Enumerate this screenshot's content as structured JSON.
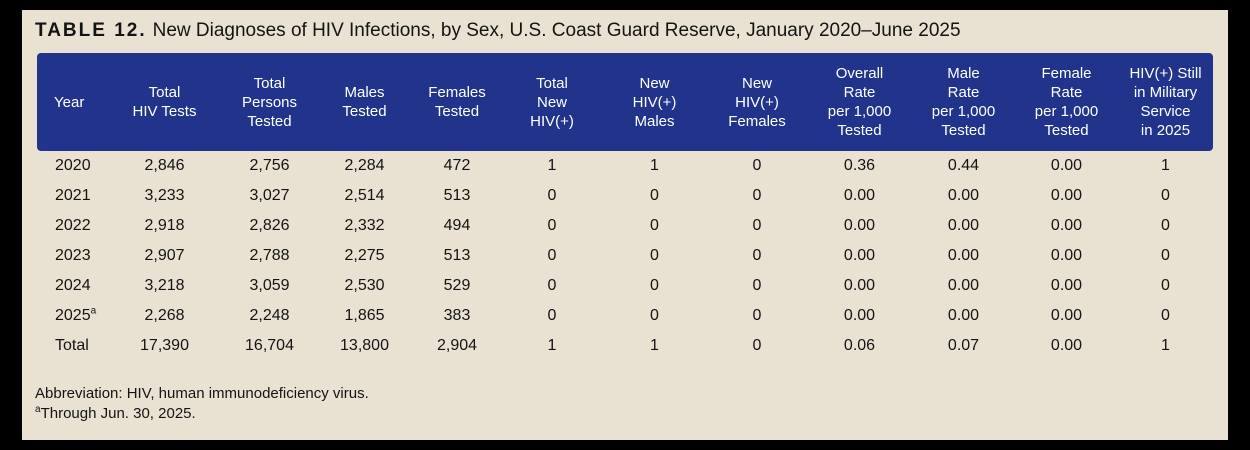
{
  "title": {
    "label": "TABLE 12.",
    "text": "New Diagnoses of HIV Infections, by Sex, U.S. Coast Guard Reserve, January 2020–June 2025"
  },
  "colors": {
    "header_bg": "#21338b",
    "header_text": "#ffffff",
    "page_bg": "#e9e1d2",
    "frame": "#000000",
    "body_text": "#141414"
  },
  "table": {
    "columns": [
      {
        "key": "year",
        "label": "Year"
      },
      {
        "key": "total_hiv_tests",
        "label": "Total\nHIV Tests"
      },
      {
        "key": "total_persons_tested",
        "label": "Total\nPersons\nTested"
      },
      {
        "key": "males_tested",
        "label": "Males\nTested"
      },
      {
        "key": "females_tested",
        "label": "Females\nTested"
      },
      {
        "key": "total_new_hiv_pos",
        "label": "Total\nNew\nHIV(+)"
      },
      {
        "key": "new_hiv_pos_males",
        "label": "New\nHIV(+)\nMales"
      },
      {
        "key": "new_hiv_pos_females",
        "label": "New\nHIV(+)\nFemales"
      },
      {
        "key": "overall_rate",
        "label": "Overall\nRate\nper 1,000\nTested"
      },
      {
        "key": "male_rate",
        "label": "Male\nRate\nper 1,000\nTested"
      },
      {
        "key": "female_rate",
        "label": "Female\nRate\nper 1,000\nTested"
      },
      {
        "key": "hiv_pos_still_in_service",
        "label": "HIV(+) Still\nin Military\nService\nin 2025"
      }
    ],
    "rows": [
      {
        "year": "2020",
        "year_sup": "",
        "values": [
          "2,846",
          "2,756",
          "2,284",
          "472",
          "1",
          "1",
          "0",
          "0.36",
          "0.44",
          "0.00",
          "1"
        ]
      },
      {
        "year": "2021",
        "year_sup": "",
        "values": [
          "3,233",
          "3,027",
          "2,514",
          "513",
          "0",
          "0",
          "0",
          "0.00",
          "0.00",
          "0.00",
          "0"
        ]
      },
      {
        "year": "2022",
        "year_sup": "",
        "values": [
          "2,918",
          "2,826",
          "2,332",
          "494",
          "0",
          "0",
          "0",
          "0.00",
          "0.00",
          "0.00",
          "0"
        ]
      },
      {
        "year": "2023",
        "year_sup": "",
        "values": [
          "2,907",
          "2,788",
          "2,275",
          "513",
          "0",
          "0",
          "0",
          "0.00",
          "0.00",
          "0.00",
          "0"
        ]
      },
      {
        "year": "2024",
        "year_sup": "",
        "values": [
          "3,218",
          "3,059",
          "2,530",
          "529",
          "0",
          "0",
          "0",
          "0.00",
          "0.00",
          "0.00",
          "0"
        ]
      },
      {
        "year": "2025",
        "year_sup": "a",
        "values": [
          "2,268",
          "2,248",
          "1,865",
          "383",
          "0",
          "0",
          "0",
          "0.00",
          "0.00",
          "0.00",
          "0"
        ]
      },
      {
        "year": "Total",
        "year_sup": "",
        "values": [
          "17,390",
          "16,704",
          "13,800",
          "2,904",
          "1",
          "1",
          "0",
          "0.06",
          "0.07",
          "0.00",
          "1"
        ]
      }
    ]
  },
  "footnotes": {
    "abbreviation": "Abbreviation: HIV, human immunodeficiency virus.",
    "note_marker": "a",
    "note_text": "Through Jun. 30, 2025."
  }
}
